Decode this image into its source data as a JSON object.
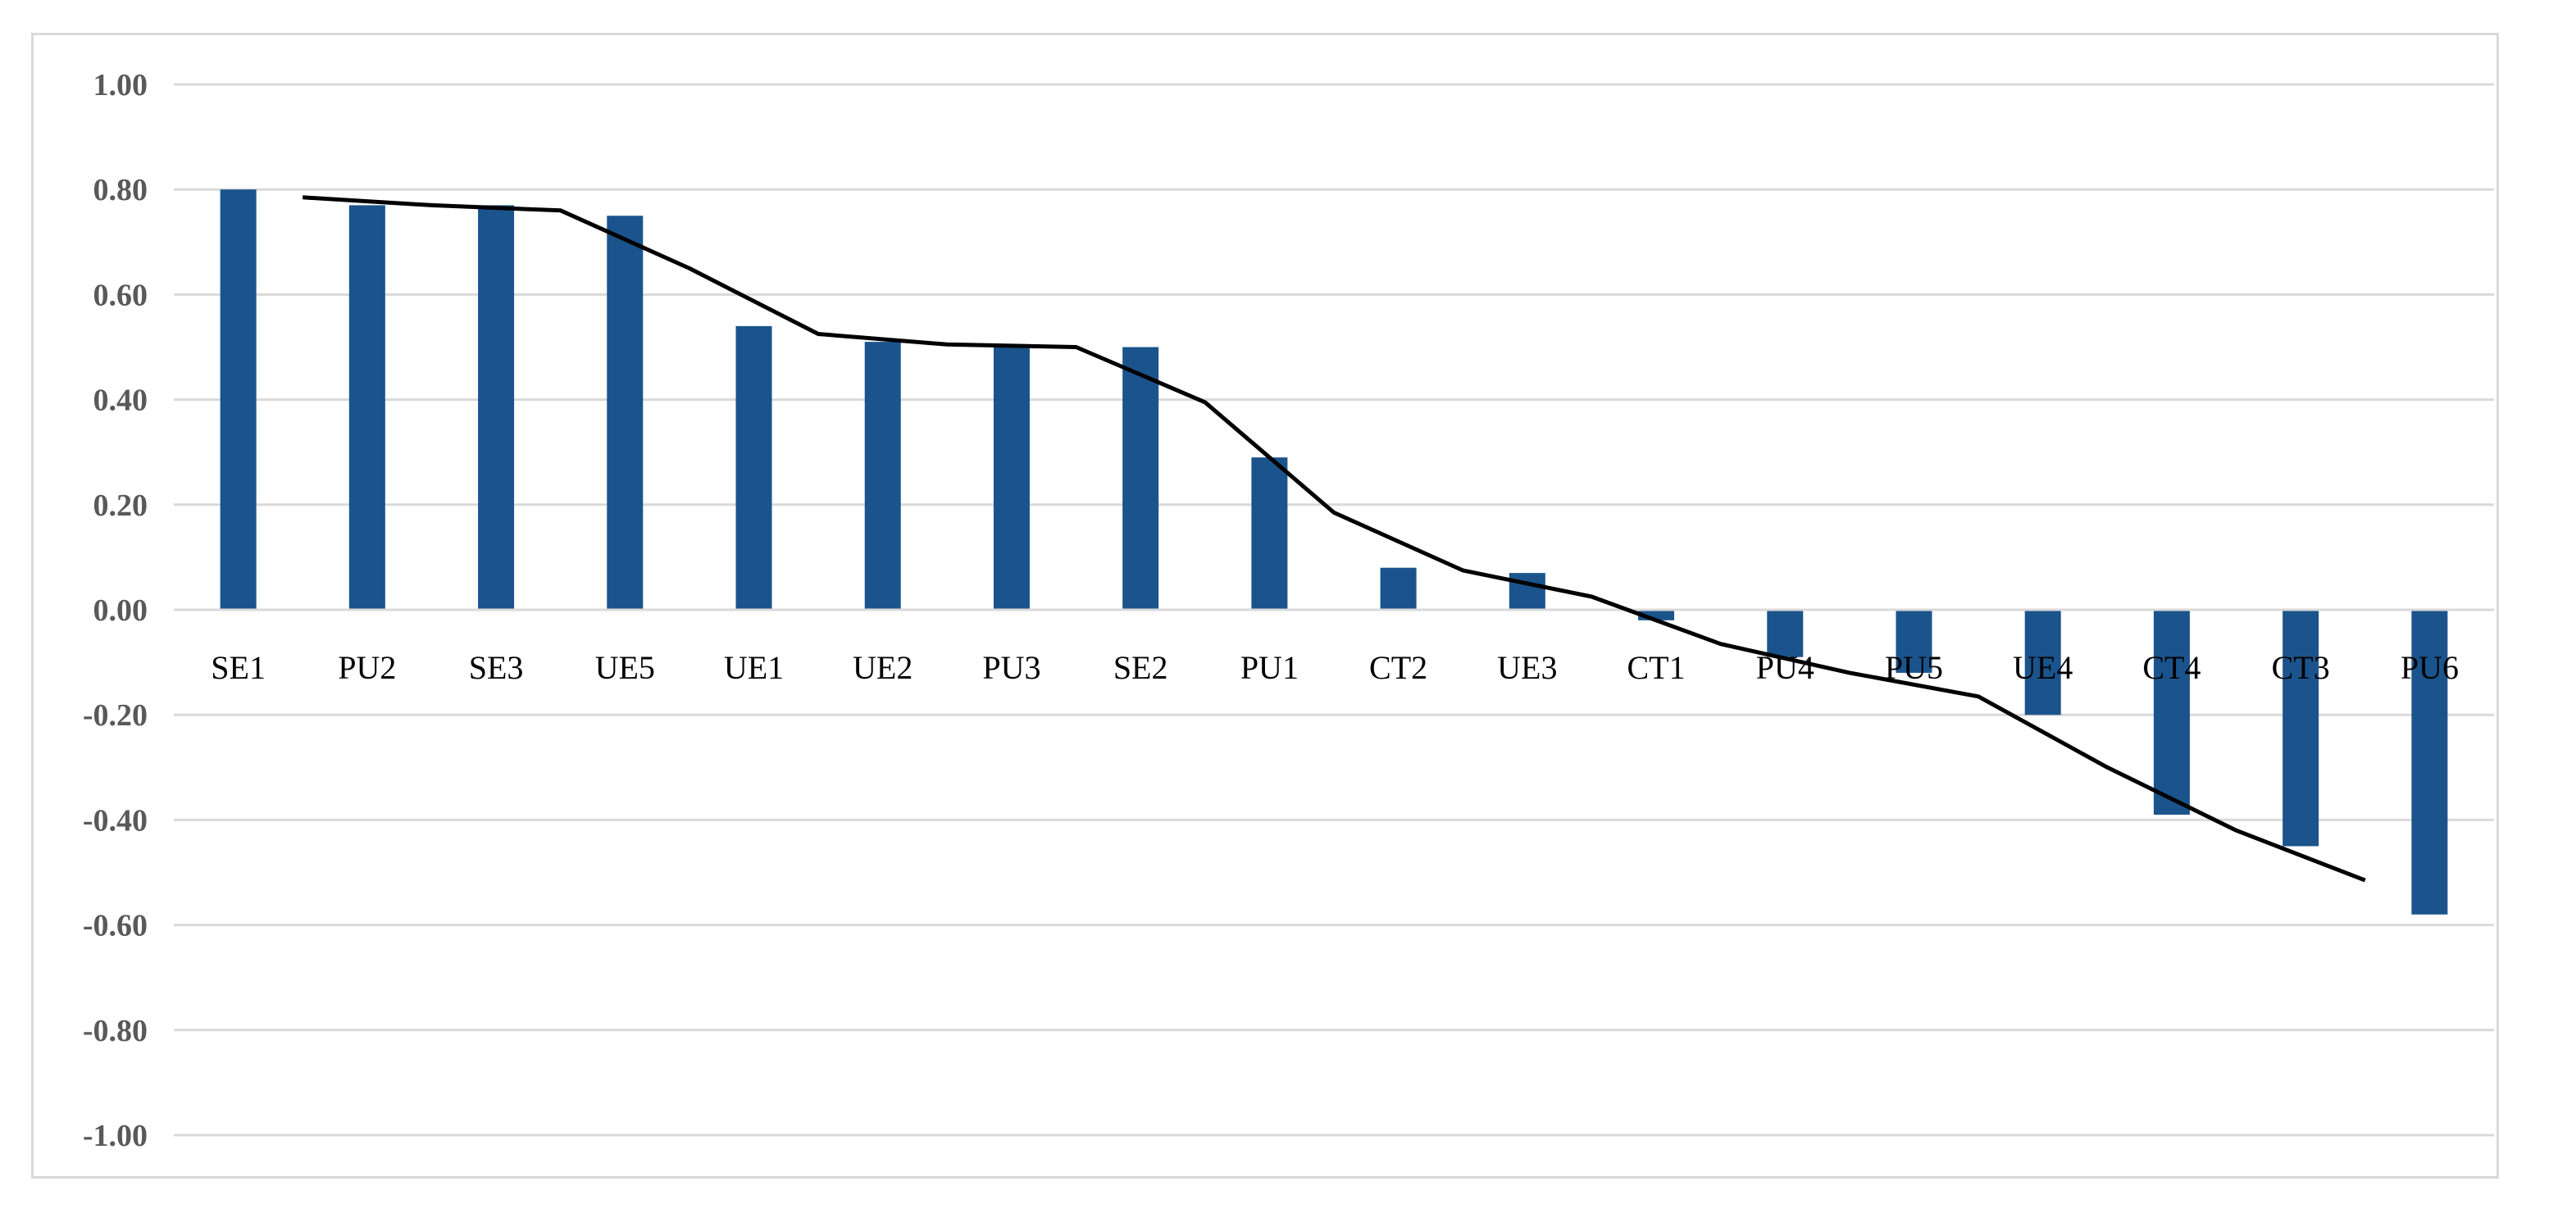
{
  "chart_data": {
    "type": "bar",
    "categories": [
      "SE1",
      "PU2",
      "SE3",
      "UE5",
      "UE1",
      "UE2",
      "PU3",
      "SE2",
      "PU1",
      "CT2",
      "UE3",
      "CT1",
      "PU4",
      "PU5",
      "UE4",
      "CT4",
      "CT3",
      "PU6"
    ],
    "values": [
      0.8,
      0.77,
      0.77,
      0.75,
      0.54,
      0.51,
      0.5,
      0.5,
      0.29,
      0.08,
      0.07,
      -0.02,
      -0.09,
      -0.12,
      -0.2,
      -0.39,
      -0.45,
      -0.58
    ],
    "bar_color": "#1b548c",
    "line": {
      "color": "#000000",
      "x_start": 0.5,
      "values": [
        0.785,
        0.77,
        0.76,
        0.65,
        0.525,
        0.505,
        0.5,
        0.395,
        0.185,
        0.075,
        0.025,
        -0.065,
        -0.12,
        -0.165,
        -0.3,
        -0.42,
        -0.515
      ]
    },
    "title": "",
    "xlabel": "",
    "ylabel": "",
    "ylim": [
      -1.0,
      1.0
    ],
    "yticks": [
      -1.0,
      -0.8,
      -0.6,
      -0.4,
      -0.2,
      0.0,
      0.2,
      0.4,
      0.6,
      0.8,
      1.0
    ],
    "ytick_labels": [
      "-1.00",
      "-0.80",
      "-0.60",
      "-0.40",
      "-0.20",
      "0.00",
      "0.20",
      "0.40",
      "0.60",
      "0.80",
      "1.00"
    ],
    "grid": true,
    "legend": "none"
  }
}
